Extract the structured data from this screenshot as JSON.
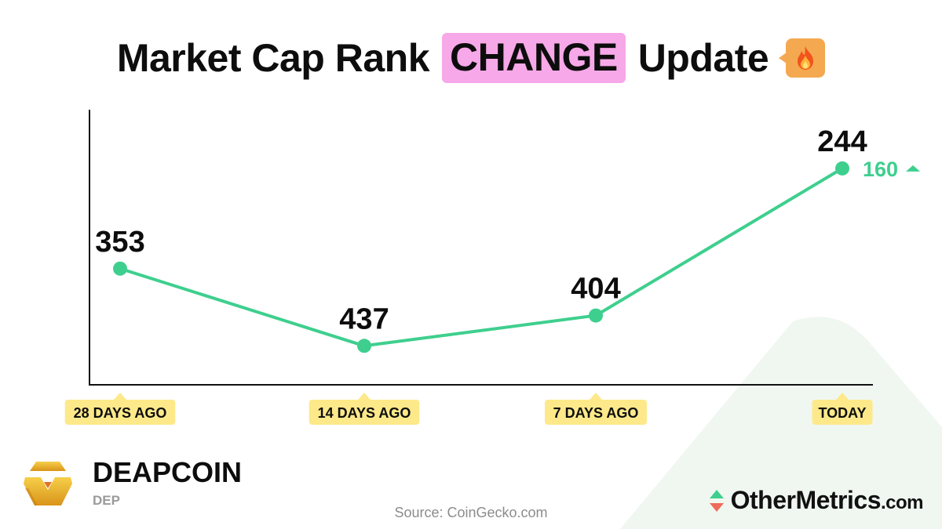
{
  "title": {
    "prefix": "Market Cap Rank",
    "highlight": "CHANGE",
    "suffix": "Update",
    "highlight_color": "#f7a8e8",
    "icon": "fire-emoji-icon"
  },
  "chart_data": {
    "type": "line",
    "categories": [
      "28 DAYS AGO",
      "14 DAYS AGO",
      "7 DAYS AGO",
      "TODAY"
    ],
    "values": [
      353,
      437,
      404,
      244
    ],
    "y_inverted": true,
    "ylim": [
      470,
      210
    ],
    "line_color": "#3ecf8e",
    "label_badge_color": "#fde98a",
    "change": {
      "value": "160",
      "direction": "up",
      "color": "#3ecf8e"
    },
    "grid": false
  },
  "coin": {
    "name": "DEAPCOIN",
    "symbol": "DEP",
    "logo_icon": "deapcoin-logo-icon"
  },
  "source": "Source: CoinGecko.com",
  "brand": {
    "name": "OtherMetrics",
    "domain": ".com",
    "icon": "up-down-arrows-icon"
  }
}
